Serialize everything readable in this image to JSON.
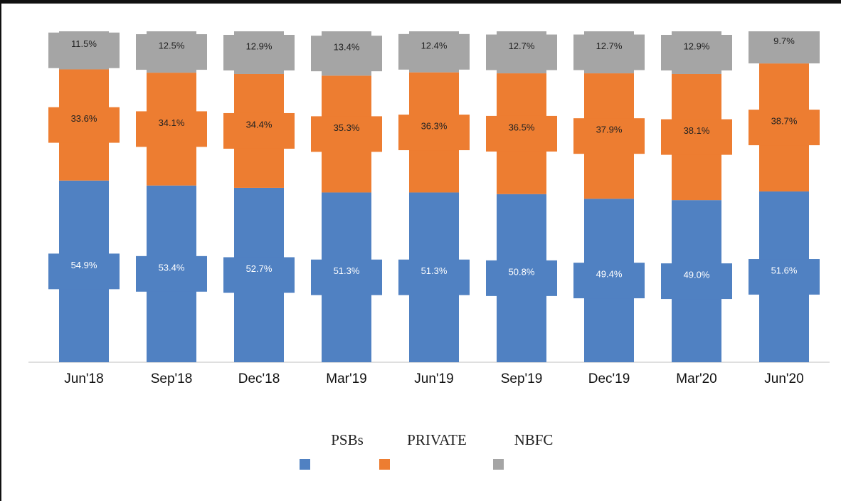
{
  "chart_data": {
    "type": "stacked-bar",
    "categories": [
      "Jun'18",
      "Sep'18",
      "Dec'18",
      "Mar'19",
      "Jun'19",
      "Sep'19",
      "Dec'19",
      "Mar'20",
      "Jun'20"
    ],
    "ylim": [
      0,
      100
    ],
    "series": [
      {
        "name": "PSBs",
        "color": "#5081c2",
        "label_color": "#ffffff",
        "values": [
          54.9,
          53.4,
          52.7,
          51.3,
          51.3,
          50.8,
          49.4,
          49.0,
          51.6
        ],
        "value_labels": [
          "54.9%",
          "53.4%",
          "52.7%",
          "51.3%",
          "51.3%",
          "50.8%",
          "49.4%",
          "49.0%",
          "51.6%"
        ]
      },
      {
        "name": "PRIVATE",
        "color": "#ed7d31",
        "label_color": "#222222",
        "values": [
          33.6,
          34.1,
          34.4,
          35.3,
          36.3,
          36.5,
          37.9,
          38.1,
          38.7
        ],
        "value_labels": [
          "33.6%",
          "34.1%",
          "34.4%",
          "35.3%",
          "36.3%",
          "36.5%",
          "37.9%",
          "38.1%",
          "38.7%"
        ]
      },
      {
        "name": "NBFC",
        "color": "#a5a5a5",
        "label_color": "#222222",
        "values": [
          11.5,
          12.5,
          12.9,
          13.4,
          12.4,
          12.7,
          12.7,
          12.9,
          9.7
        ],
        "value_labels": [
          "11.5%",
          "12.5%",
          "12.9%",
          "13.4%",
          "12.4%",
          "12.7%",
          "12.7%",
          "12.9%",
          "9.7%"
        ]
      }
    ]
  }
}
